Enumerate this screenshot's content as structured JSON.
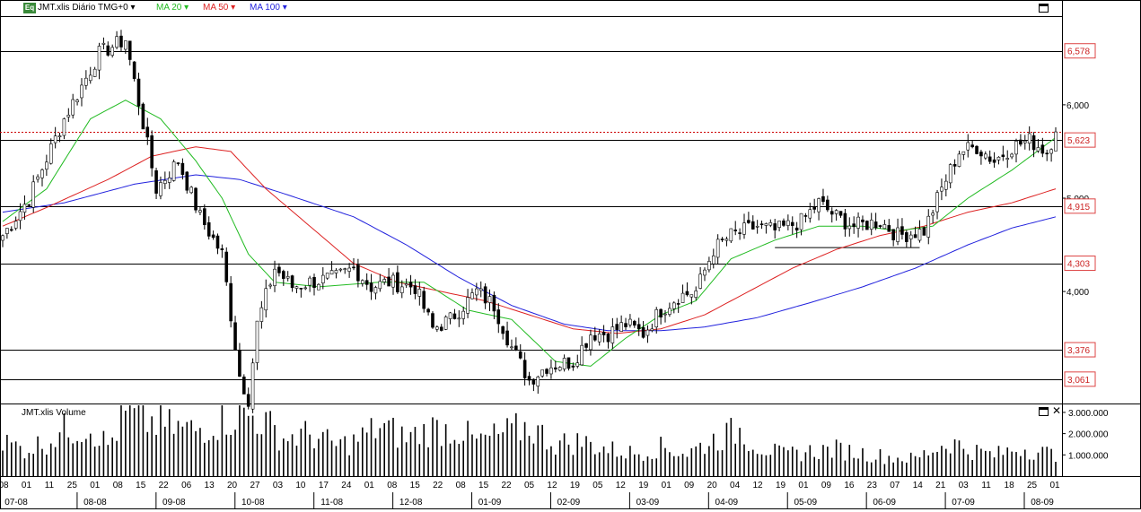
{
  "header": {
    "icon_label": "Eq",
    "symbol_label": "JMT.xlis Diário TMG+0",
    "ma20_label": "MA 20",
    "ma50_label": "MA 50",
    "ma100_label": "MA 100",
    "ma20_color": "#22bb22",
    "ma50_color": "#dd2222",
    "ma100_color": "#2222dd"
  },
  "volume_header": {
    "label": "JMT.xlis Volume"
  },
  "chart_data": {
    "type": "candlestick",
    "price_axis": {
      "ticks": [
        {
          "value": 4.0,
          "label": "4,000"
        },
        {
          "value": 5.0,
          "label": "5,000"
        },
        {
          "value": 6.0,
          "label": "6,000"
        }
      ],
      "ylim": [
        2.8,
        6.95
      ]
    },
    "level_lines": [
      {
        "value": 6.578,
        "label": "6,578"
      },
      {
        "value": 5.623,
        "label": "5,623"
      },
      {
        "value": 4.915,
        "label": "4,915"
      },
      {
        "value": 4.303,
        "label": "4,303"
      },
      {
        "value": 3.376,
        "label": "3,376"
      },
      {
        "value": 3.061,
        "label": "3,061"
      }
    ],
    "current_price": 5.71,
    "support_segment": {
      "value": 4.47,
      "from_bar": 176,
      "to_bar": 209
    },
    "volume_axis": {
      "ticks": [
        {
          "value": 1000000,
          "label": "1.000.000"
        },
        {
          "value": 2000000,
          "label": "2.000.000"
        },
        {
          "value": 3000000,
          "label": "3.000.000"
        }
      ],
      "ylim": [
        0,
        3250000
      ]
    },
    "date_axis": {
      "day_labels": [
        "08",
        "01",
        "11",
        "25",
        "01",
        "08",
        "15",
        "22",
        "06",
        "13",
        "20",
        "27",
        "03",
        "10",
        "17",
        "24",
        "01",
        "08",
        "15",
        "22",
        "08",
        "15",
        "22",
        "05",
        "12",
        "19",
        "05",
        "12",
        "19",
        "01",
        "09",
        "20",
        "04",
        "12",
        "19",
        "01",
        "09",
        "16",
        "23",
        "07",
        "14",
        "21",
        "03",
        "11",
        "18",
        "25",
        "01"
      ],
      "month_labels": [
        "07-08",
        "08-08",
        "09-08",
        "10-08",
        "11-08",
        "12-08",
        "01-09",
        "02-09",
        "03-09",
        "04-09",
        "05-09",
        "06-09",
        "07-09",
        "08-09"
      ]
    },
    "anchors": [
      [
        0,
        4.6
      ],
      [
        6,
        5.0
      ],
      [
        14,
        5.85
      ],
      [
        22,
        6.55
      ],
      [
        28,
        6.7
      ],
      [
        32,
        5.8
      ],
      [
        35,
        5.1
      ],
      [
        40,
        5.4
      ],
      [
        45,
        4.8
      ],
      [
        50,
        4.4
      ],
      [
        54,
        3.1
      ],
      [
        56,
        2.85
      ],
      [
        58,
        3.65
      ],
      [
        62,
        4.25
      ],
      [
        66,
        4.05
      ],
      [
        70,
        4.1
      ],
      [
        76,
        4.15
      ],
      [
        80,
        4.25
      ],
      [
        84,
        4.05
      ],
      [
        88,
        4.1
      ],
      [
        94,
        4.05
      ],
      [
        98,
        3.6
      ],
      [
        102,
        3.7
      ],
      [
        108,
        4.0
      ],
      [
        112,
        3.85
      ],
      [
        116,
        3.4
      ],
      [
        120,
        3.05
      ],
      [
        124,
        3.2
      ],
      [
        130,
        3.25
      ],
      [
        134,
        3.55
      ],
      [
        138,
        3.55
      ],
      [
        142,
        3.65
      ],
      [
        146,
        3.55
      ],
      [
        150,
        3.8
      ],
      [
        154,
        3.95
      ],
      [
        158,
        4.0
      ],
      [
        162,
        4.45
      ],
      [
        166,
        4.6
      ],
      [
        172,
        4.7
      ],
      [
        176,
        4.65
      ],
      [
        182,
        4.75
      ],
      [
        186,
        4.95
      ],
      [
        190,
        4.8
      ],
      [
        194,
        4.7
      ],
      [
        200,
        4.75
      ],
      [
        204,
        4.6
      ],
      [
        210,
        4.65
      ],
      [
        214,
        5.1
      ],
      [
        218,
        5.5
      ],
      [
        222,
        5.55
      ],
      [
        226,
        5.4
      ],
      [
        230,
        5.55
      ],
      [
        234,
        5.62
      ],
      [
        238,
        5.5
      ],
      [
        240,
        5.71
      ]
    ],
    "ma20_anchors": [
      [
        0,
        4.75
      ],
      [
        10,
        5.1
      ],
      [
        20,
        5.85
      ],
      [
        28,
        6.05
      ],
      [
        36,
        5.85
      ],
      [
        44,
        5.4
      ],
      [
        50,
        5.0
      ],
      [
        56,
        4.4
      ],
      [
        62,
        4.1
      ],
      [
        72,
        4.05
      ],
      [
        86,
        4.1
      ],
      [
        96,
        4.1
      ],
      [
        106,
        3.8
      ],
      [
        116,
        3.7
      ],
      [
        126,
        3.25
      ],
      [
        134,
        3.2
      ],
      [
        142,
        3.5
      ],
      [
        150,
        3.75
      ],
      [
        158,
        3.9
      ],
      [
        166,
        4.35
      ],
      [
        176,
        4.55
      ],
      [
        186,
        4.7
      ],
      [
        196,
        4.7
      ],
      [
        204,
        4.65
      ],
      [
        212,
        4.7
      ],
      [
        220,
        5.0
      ],
      [
        230,
        5.3
      ],
      [
        240,
        5.65
      ]
    ],
    "ma50_anchors": [
      [
        0,
        4.7
      ],
      [
        10,
        4.9
      ],
      [
        24,
        5.2
      ],
      [
        34,
        5.45
      ],
      [
        44,
        5.55
      ],
      [
        52,
        5.5
      ],
      [
        60,
        5.1
      ],
      [
        70,
        4.7
      ],
      [
        80,
        4.3
      ],
      [
        90,
        4.1
      ],
      [
        100,
        4.0
      ],
      [
        110,
        3.9
      ],
      [
        120,
        3.75
      ],
      [
        130,
        3.6
      ],
      [
        140,
        3.55
      ],
      [
        150,
        3.6
      ],
      [
        160,
        3.75
      ],
      [
        170,
        4.0
      ],
      [
        180,
        4.25
      ],
      [
        190,
        4.45
      ],
      [
        200,
        4.6
      ],
      [
        210,
        4.7
      ],
      [
        220,
        4.85
      ],
      [
        230,
        4.95
      ],
      [
        240,
        5.1
      ]
    ],
    "ma100_anchors": [
      [
        0,
        4.85
      ],
      [
        14,
        4.95
      ],
      [
        30,
        5.15
      ],
      [
        44,
        5.25
      ],
      [
        54,
        5.2
      ],
      [
        64,
        5.05
      ],
      [
        80,
        4.8
      ],
      [
        92,
        4.5
      ],
      [
        104,
        4.15
      ],
      [
        116,
        3.85
      ],
      [
        128,
        3.65
      ],
      [
        138,
        3.58
      ],
      [
        150,
        3.58
      ],
      [
        160,
        3.62
      ],
      [
        172,
        3.72
      ],
      [
        184,
        3.88
      ],
      [
        196,
        4.05
      ],
      [
        208,
        4.25
      ],
      [
        220,
        4.5
      ],
      [
        230,
        4.68
      ],
      [
        240,
        4.8
      ]
    ],
    "volume_anchors": [
      [
        0,
        1.8
      ],
      [
        5,
        1.4
      ],
      [
        10,
        1.8
      ],
      [
        14,
        2.4
      ],
      [
        20,
        2.6
      ],
      [
        24,
        1.6
      ],
      [
        28,
        3.2
      ],
      [
        34,
        2.8
      ],
      [
        40,
        2.5
      ],
      [
        44,
        2.4
      ],
      [
        50,
        3.0
      ],
      [
        54,
        3.2
      ],
      [
        58,
        3.1
      ],
      [
        64,
        2.0
      ],
      [
        70,
        2.2
      ],
      [
        76,
        1.6
      ],
      [
        80,
        1.8
      ],
      [
        86,
        2.6
      ],
      [
        92,
        2.0
      ],
      [
        98,
        2.5
      ],
      [
        104,
        2.4
      ],
      [
        108,
        1.8
      ],
      [
        114,
        2.2
      ],
      [
        120,
        2.6
      ],
      [
        126,
        1.7
      ],
      [
        132,
        1.8
      ],
      [
        138,
        1.4
      ],
      [
        144,
        1.2
      ],
      [
        150,
        1.5
      ],
      [
        156,
        1.2
      ],
      [
        162,
        1.9
      ],
      [
        168,
        2.4
      ],
      [
        172,
        1.6
      ],
      [
        178,
        1.1
      ],
      [
        184,
        1.3
      ],
      [
        190,
        1.4
      ],
      [
        196,
        1.2
      ],
      [
        202,
        1.0
      ],
      [
        208,
        0.9
      ],
      [
        212,
        1.4
      ],
      [
        216,
        1.8
      ],
      [
        220,
        1.4
      ],
      [
        226,
        1.1
      ],
      [
        232,
        1.5
      ],
      [
        240,
        1.1
      ]
    ]
  }
}
